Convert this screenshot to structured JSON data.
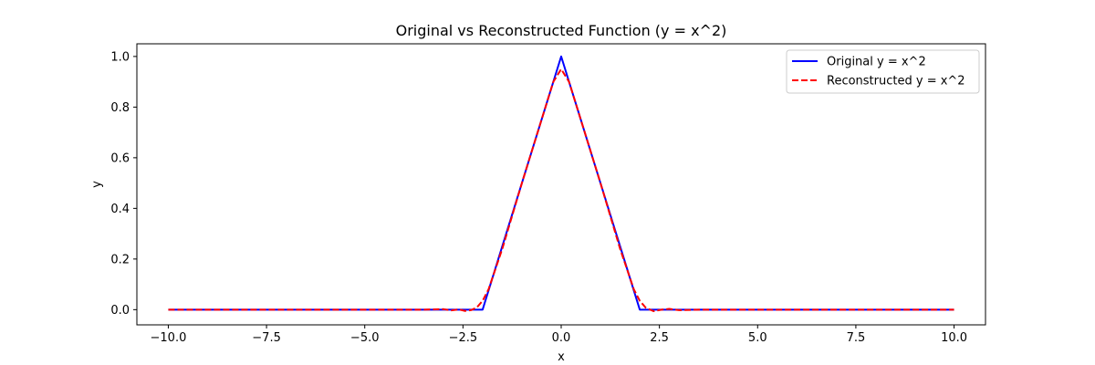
{
  "chart_data": {
    "type": "line",
    "title": "Original vs Reconstructed Function (y = x^2)",
    "xlabel": "x",
    "ylabel": "y",
    "xlim": [
      -10.8,
      10.8
    ],
    "ylim": [
      -0.06,
      1.05
    ],
    "xticks": [
      -10.0,
      -7.5,
      -5.0,
      -2.5,
      0.0,
      2.5,
      5.0,
      7.5,
      10.0
    ],
    "xtick_labels": [
      "−10.0",
      "−7.5",
      "−5.0",
      "−2.5",
      "0.0",
      "2.5",
      "5.0",
      "7.5",
      "10.0"
    ],
    "yticks": [
      0.0,
      0.2,
      0.4,
      0.6,
      0.8,
      1.0
    ],
    "ytick_labels": [
      "0.0",
      "0.2",
      "0.4",
      "0.6",
      "0.8",
      "1.0"
    ],
    "grid": false,
    "legend_position": "top-right",
    "series": [
      {
        "name": "Original y = x^2",
        "color": "#0000ff",
        "style": "solid",
        "x": [
          -10.0,
          -2.0,
          -1.5,
          -1.0,
          -0.5,
          0.0,
          0.5,
          1.0,
          1.5,
          2.0,
          10.0
        ],
        "y": [
          0.0,
          0.0,
          0.25,
          0.5,
          0.75,
          1.0,
          0.75,
          0.5,
          0.25,
          0.0,
          0.0
        ]
      },
      {
        "name": "Reconstructed y = x^2",
        "color": "#ff0000",
        "style": "dashed",
        "x": [
          -10.0,
          -3.5,
          -3.0,
          -2.8,
          -2.6,
          -2.45,
          -2.3,
          -2.15,
          -2.0,
          -1.85,
          -1.5,
          -1.0,
          -0.5,
          -0.2,
          0.0,
          0.2,
          0.5,
          1.0,
          1.5,
          1.85,
          2.0,
          2.15,
          2.35,
          2.55,
          2.75,
          3.0,
          3.5,
          10.0
        ],
        "y": [
          0.0,
          0.0,
          0.002,
          -0.003,
          0.001,
          -0.005,
          -0.002,
          0.008,
          0.035,
          0.08,
          0.24,
          0.5,
          0.75,
          0.9,
          0.95,
          0.9,
          0.75,
          0.5,
          0.24,
          0.08,
          0.035,
          0.008,
          -0.006,
          0.0,
          0.003,
          -0.002,
          0.0,
          0.0
        ]
      }
    ]
  }
}
